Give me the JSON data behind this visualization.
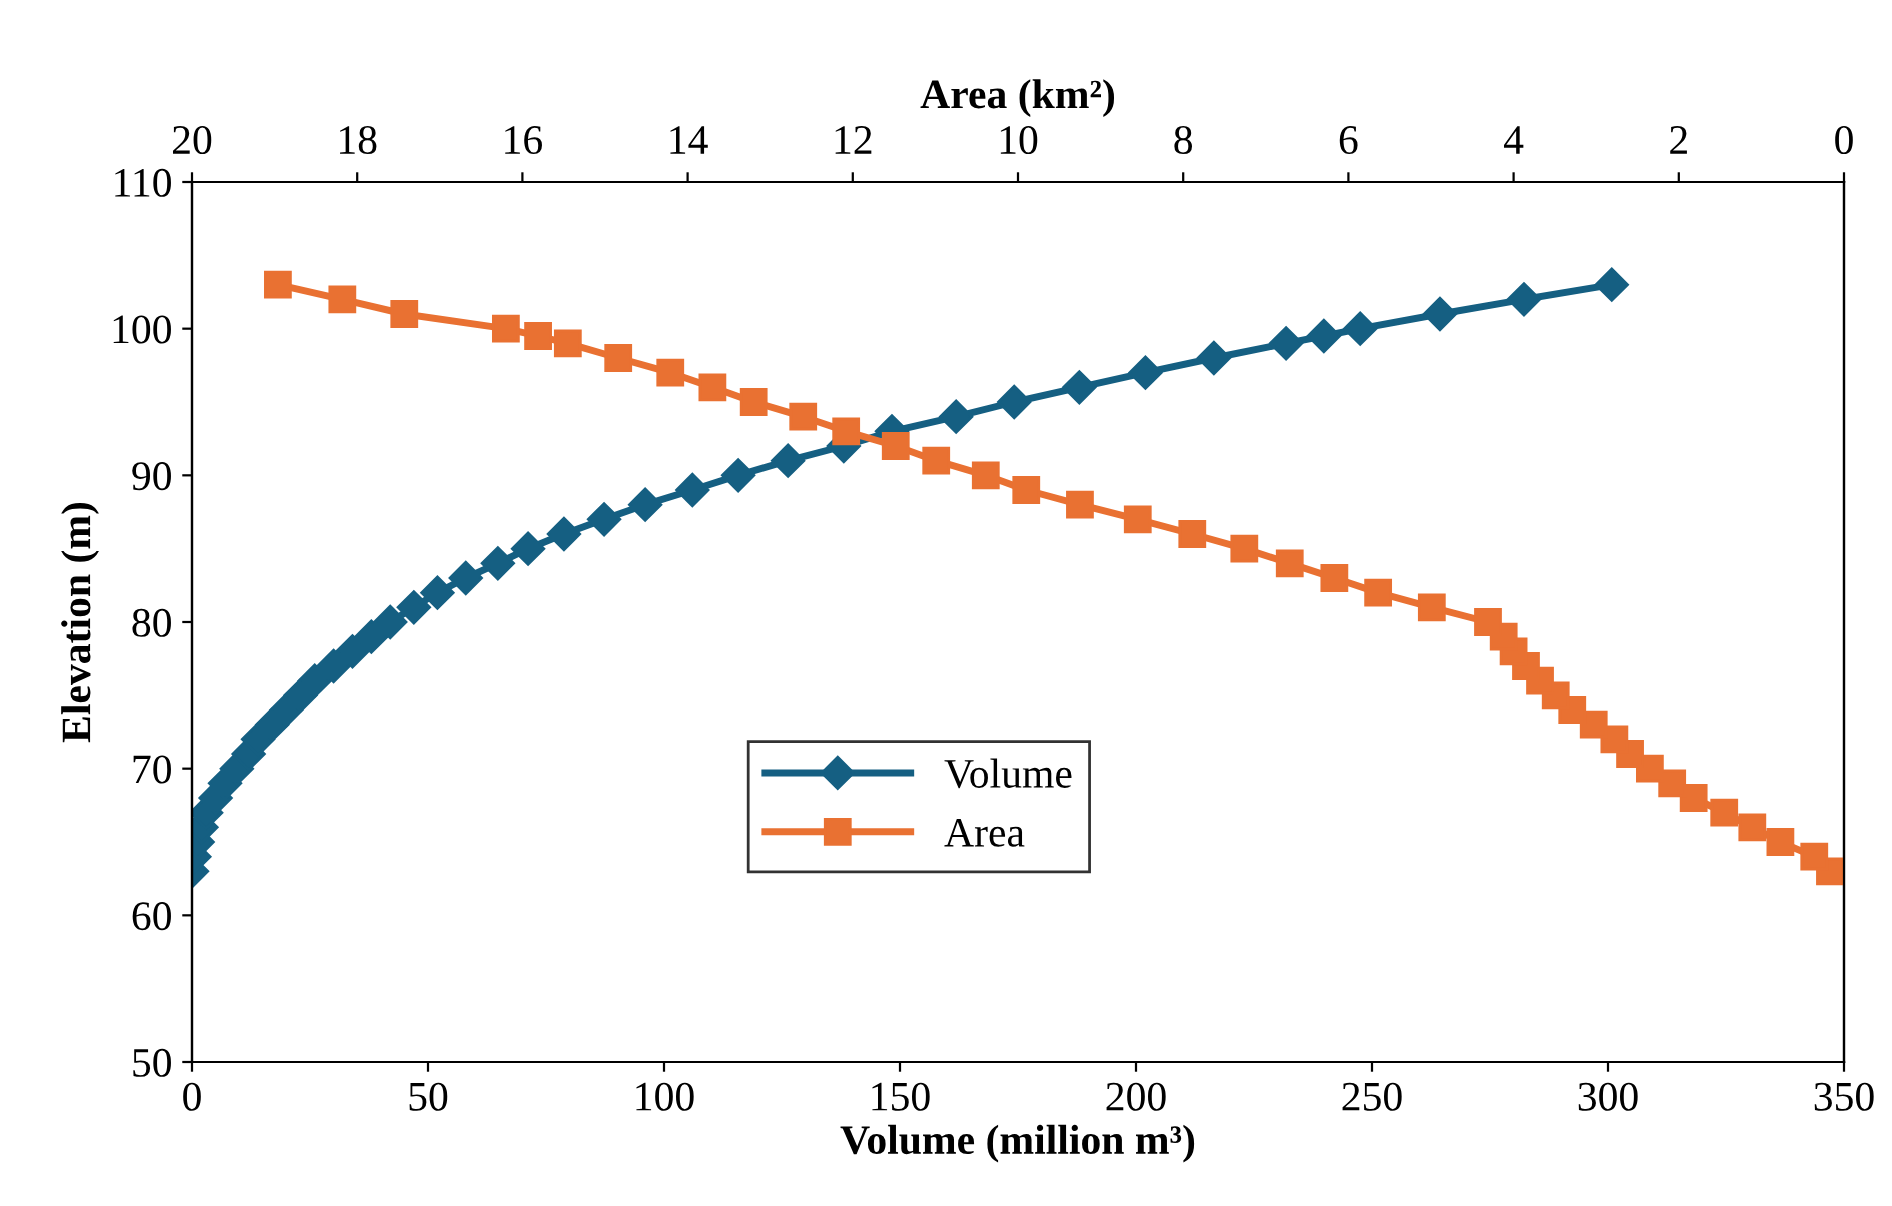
{
  "chart_data": {
    "type": "line",
    "xlabel": "Volume (million m³)",
    "x2label": "Area (km²)",
    "ylabel": "Elevation (m)",
    "xlim": [
      0,
      350
    ],
    "xticks": [
      0,
      50,
      100,
      150,
      200,
      250,
      300,
      350
    ],
    "x2lim": [
      20,
      0
    ],
    "x2ticks": [
      20,
      18,
      16,
      14,
      12,
      10,
      8,
      6,
      4,
      2,
      0
    ],
    "ylim": [
      50,
      110
    ],
    "yticks": [
      50,
      60,
      70,
      80,
      90,
      100,
      110
    ],
    "grid": false,
    "legend": "center",
    "line_style": "solid",
    "series": [
      {
        "name": "Volume",
        "color": "#155f82",
        "marker": "diamond",
        "x": [
          0,
          0.5,
          1.2,
          2,
          3,
          5,
          7,
          9.5,
          12,
          14,
          17,
          20,
          23,
          26,
          30,
          34,
          38,
          42,
          47,
          52,
          58,
          64.8,
          71.2,
          78.8,
          87.3,
          96,
          106,
          115.7,
          126.3,
          138.1,
          148.3,
          161.9,
          174.2,
          188,
          202,
          216.5,
          231.8,
          239.8,
          247.5,
          264.4,
          282.2,
          300.8
        ],
        "values": [
          63,
          64,
          65,
          66,
          67,
          68,
          69,
          70,
          71,
          72,
          73,
          74,
          75,
          76,
          77,
          78,
          79,
          80,
          81,
          82,
          83,
          84,
          85,
          86,
          87,
          88,
          89,
          90,
          91,
          92,
          93,
          94,
          95,
          96,
          97,
          98,
          99,
          99.5,
          100,
          101,
          102,
          103
        ]
      },
      {
        "name": "Area",
        "color": "#e97132",
        "marker": "square",
        "axis": "x2",
        "x": [
          0.17,
          0.36,
          0.77,
          1.11,
          1.45,
          1.82,
          2.08,
          2.35,
          2.59,
          2.78,
          3.03,
          3.29,
          3.49,
          3.68,
          3.85,
          4.0,
          4.12,
          4.31,
          4.99,
          5.64,
          6.17,
          6.71,
          7.26,
          7.89,
          8.55,
          9.25,
          9.9,
          10.39,
          10.99,
          11.48,
          12.08,
          12.6,
          13.2,
          13.7,
          14.21,
          14.84,
          15.45,
          15.81,
          16.2,
          17.43,
          18.18,
          18.96
        ],
        "values": [
          63,
          64,
          65,
          66,
          67,
          68,
          69,
          70,
          71,
          72,
          73,
          74,
          75,
          76,
          77,
          78,
          79,
          80,
          81,
          82,
          83,
          84,
          85,
          86,
          87,
          88,
          89,
          90,
          91,
          92,
          93,
          94,
          95,
          96,
          97,
          98,
          99,
          99.5,
          100,
          101,
          102,
          103
        ]
      }
    ]
  }
}
